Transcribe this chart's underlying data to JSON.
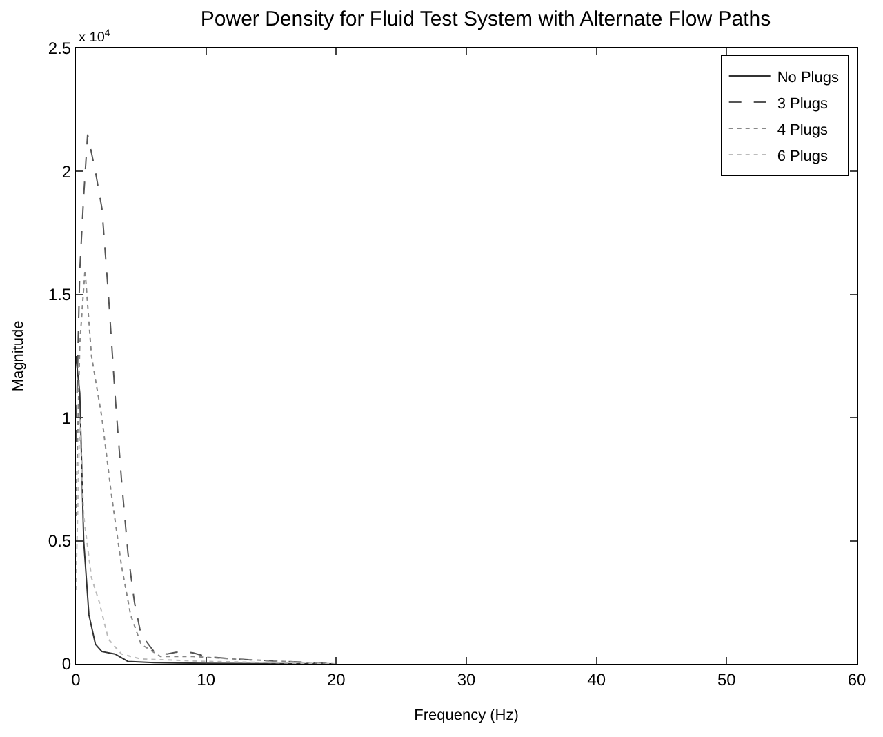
{
  "chart_data": {
    "type": "line",
    "title": "Power Density for Fluid Test System with Alternate Flow Paths",
    "xlabel": "Frequency (Hz)",
    "ylabel": "Magnitude",
    "annotations": [
      "x 10$^{4}$"
    ],
    "xlim": [
      0,
      60
    ],
    "xticks": [
      0,
      10,
      20,
      30,
      40,
      50,
      60
    ],
    "ylim": [
      0,
      2.5
    ],
    "yticks": [
      0,
      0.5,
      1,
      1.5,
      2,
      2.5
    ],
    "legend": "top right",
    "series": [
      {
        "name": "No Plugs",
        "color": "#333333",
        "line_style": "solid",
        "x": [
          0,
          0.3,
          0.6,
          1,
          1.5,
          2,
          3,
          4,
          6,
          10,
          20
        ],
        "values": [
          1.25,
          1.1,
          0.5,
          0.2,
          0.08,
          0.05,
          0.04,
          0.01,
          0.005,
          0.002,
          0
        ]
      },
      {
        "name": "3 Plugs",
        "color": "#555555",
        "line_style": "dashed",
        "x": [
          0,
          0.3,
          0.6,
          0.9,
          1.5,
          2,
          2.5,
          3,
          3.5,
          4,
          4.5,
          5,
          6,
          7,
          8,
          9,
          10,
          12,
          16,
          20
        ],
        "values": [
          0.9,
          1.6,
          1.9,
          2.15,
          2.0,
          1.85,
          1.5,
          1.1,
          0.75,
          0.45,
          0.25,
          0.12,
          0.05,
          0.04,
          0.05,
          0.045,
          0.03,
          0.02,
          0.01,
          0
        ]
      },
      {
        "name": "4 Plugs",
        "color": "#888888",
        "line_style": "dotted",
        "x": [
          0,
          0.3,
          0.7,
          1.2,
          2,
          2.7,
          3.5,
          4.2,
          5,
          6.5,
          9,
          12,
          16,
          20
        ],
        "values": [
          0.6,
          1.3,
          1.6,
          1.25,
          1.0,
          0.7,
          0.4,
          0.2,
          0.08,
          0.03,
          0.03,
          0.02,
          0.01,
          0
        ]
      },
      {
        "name": "6 Plugs",
        "color": "#bbbbbb",
        "line_style": "dotted",
        "x": [
          0,
          0.3,
          0.6,
          1.2,
          1.8,
          2.5,
          3.5,
          5,
          10,
          20
        ],
        "values": [
          0.3,
          1.0,
          0.6,
          0.35,
          0.25,
          0.1,
          0.04,
          0.02,
          0.01,
          0
        ]
      }
    ]
  }
}
